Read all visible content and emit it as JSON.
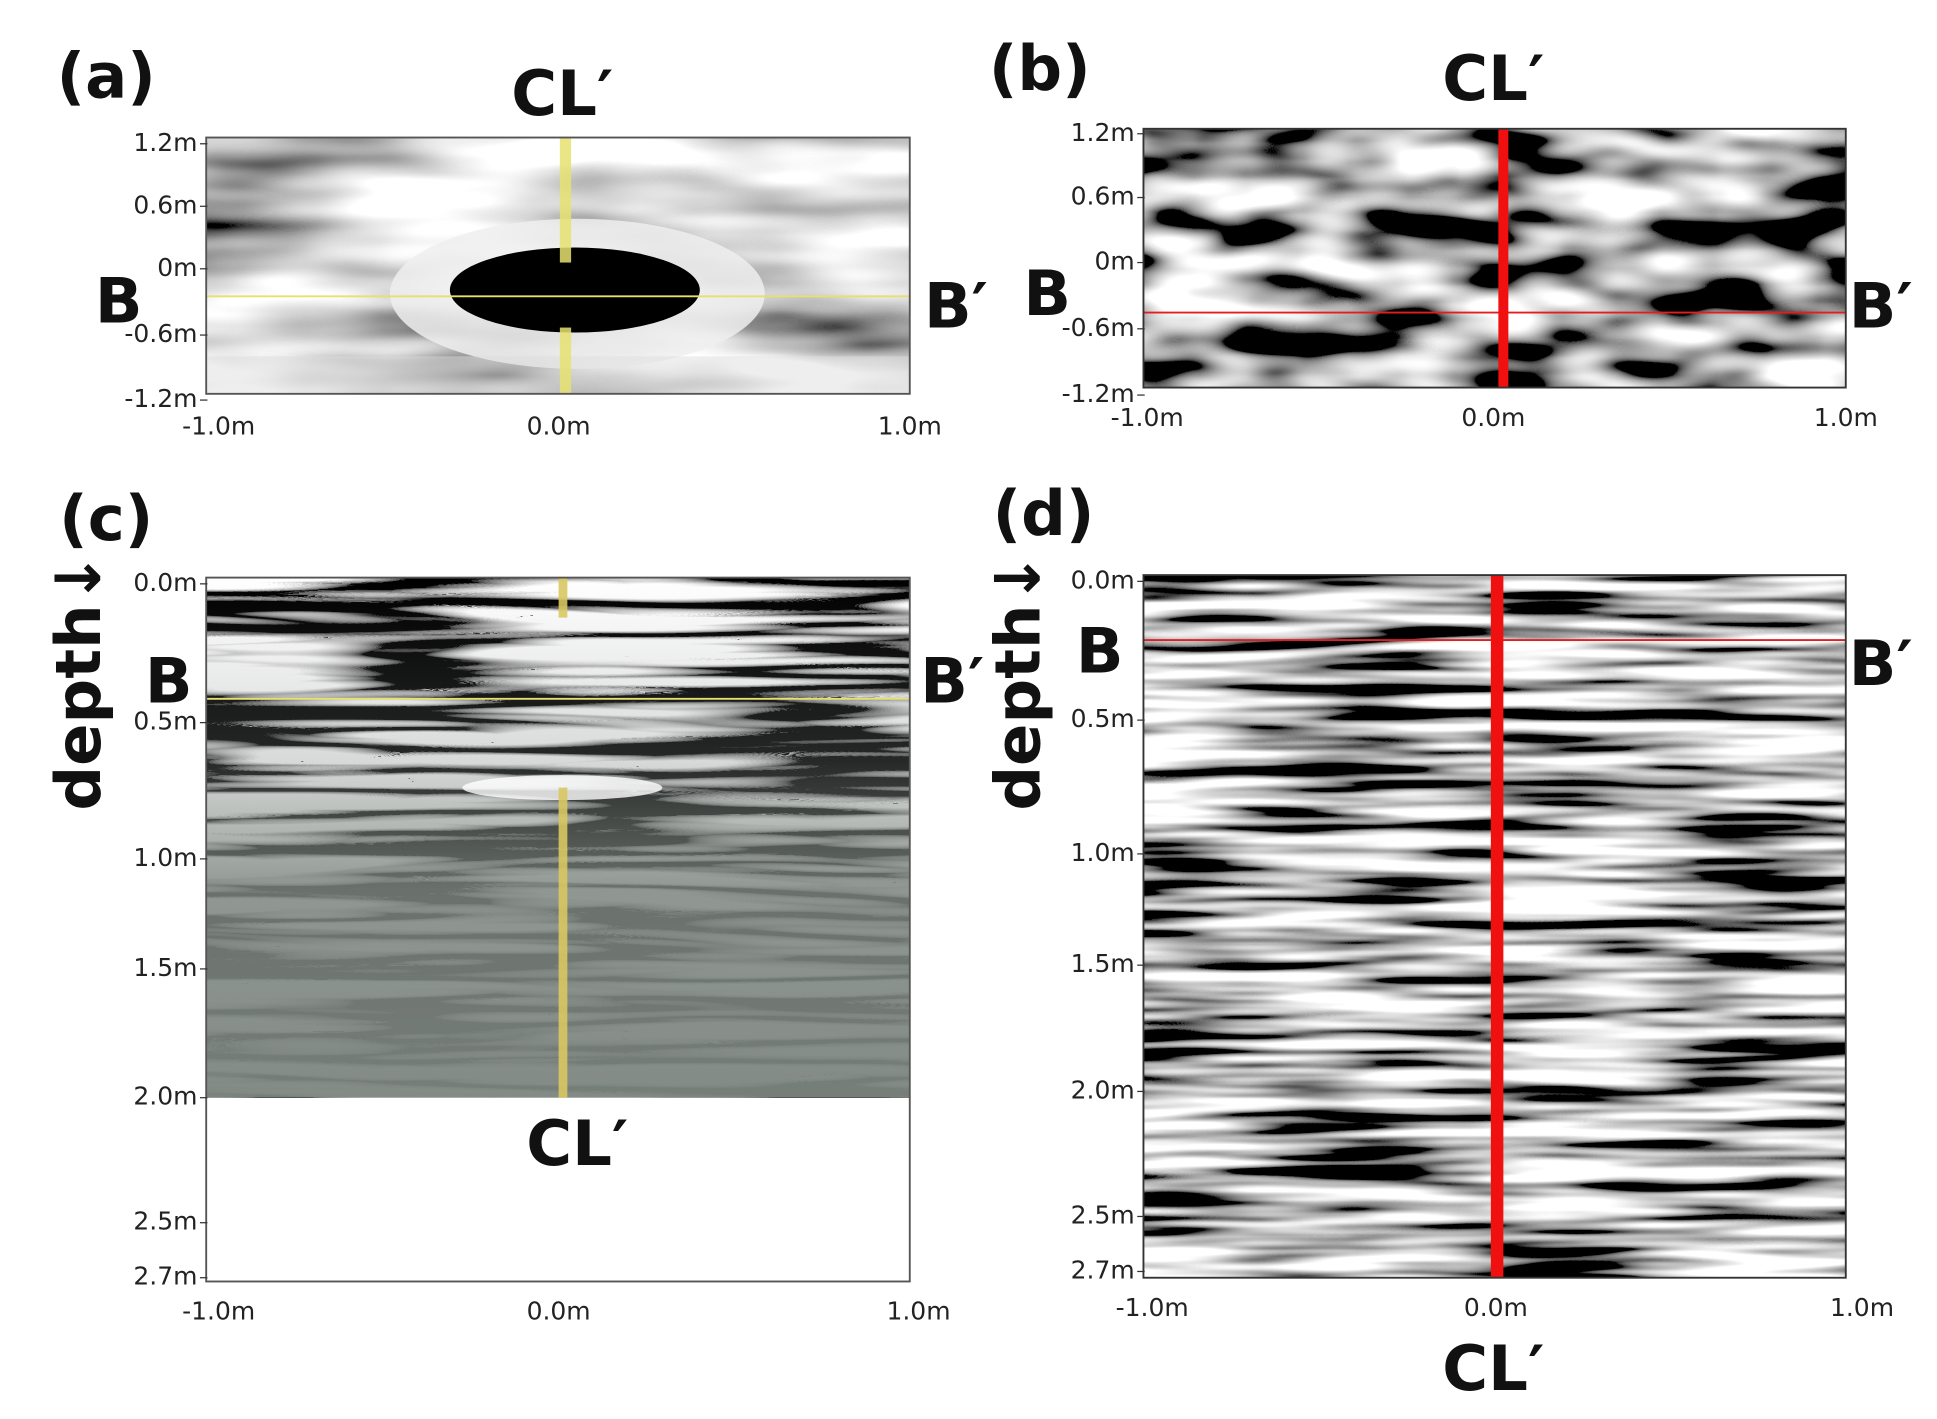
{
  "panels": [
    {
      "label": "(a)",
      "top_label": "CL′",
      "left_label": "B",
      "right_label": "B′",
      "y_ticks": [
        "1.2m",
        "0.6m",
        "0m",
        "-0.6m",
        "-1.2m"
      ],
      "x_ticks": [
        "-1.0m",
        "0.0m",
        "1.0m"
      ]
    },
    {
      "label": "(b)",
      "top_label": "CL′",
      "left_label": "B",
      "right_label": "B′",
      "y_ticks": [
        "1.2m",
        "0.6m",
        "0m",
        "-0.6m",
        "-1.2m"
      ],
      "x_ticks": [
        "-1.0m",
        "0.0m",
        "1.0m"
      ]
    },
    {
      "label": "(c)",
      "axis_title": "depth↓",
      "left_label": "B",
      "right_label": "B′",
      "bottom_label": "CL′",
      "y_ticks": [
        "0.0m",
        "0.5m",
        "1.0m",
        "1.5m",
        "2.0m",
        "2.5m",
        "2.7m"
      ],
      "x_ticks": [
        "-1.0m",
        "0.0m",
        "1.0m"
      ]
    },
    {
      "label": "(d)",
      "axis_title": "depth↓",
      "left_label": "B",
      "right_label": "B′",
      "bottom_label": "CL′",
      "y_ticks": [
        "0.0m",
        "0.5m",
        "1.0m",
        "1.5m",
        "2.0m",
        "2.5m",
        "2.7m"
      ],
      "x_ticks": [
        "-1.0m",
        "0.0m",
        "1.0m"
      ]
    }
  ]
}
